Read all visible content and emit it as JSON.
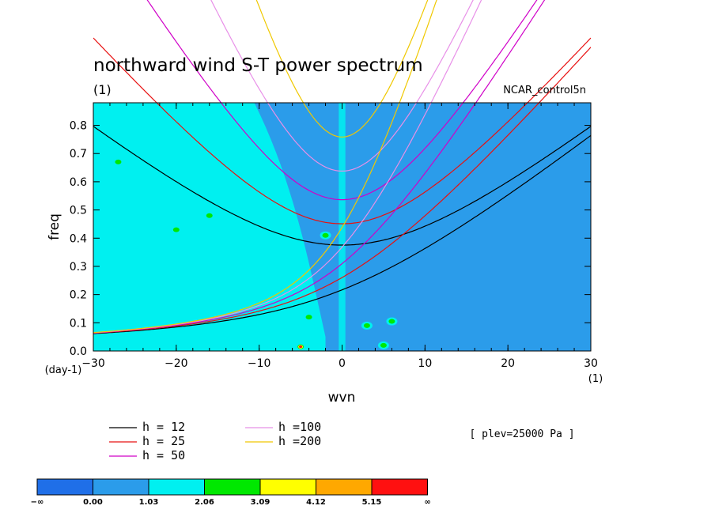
{
  "chart_data": {
    "type": "heatmap",
    "title": "northward wind S-T power spectrum",
    "subtitle": "(1)",
    "dataset": "NCAR_control5n",
    "xlabel": "wvn",
    "xunit": "(1)",
    "ylabel": "freq",
    "yunit": "(day-1)",
    "xlim": [
      -30,
      30
    ],
    "ylim": [
      0,
      0.88
    ],
    "xticks": [
      -30,
      -20,
      -10,
      0,
      10,
      20,
      30
    ],
    "xtick_labels": [
      "−30",
      "−20",
      "−10",
      "0",
      "10",
      "20",
      "30"
    ],
    "yticks": [
      0.0,
      0.1,
      0.2,
      0.3,
      0.4,
      0.5,
      0.6,
      0.7,
      0.8
    ],
    "ytick_labels": [
      "0.0",
      "0.1",
      "0.2",
      "0.3",
      "0.4",
      "0.5",
      "0.6",
      "0.7",
      "0.8"
    ],
    "annotation": "[ plev=25000 Pa ]",
    "colorbar": {
      "labels": [
        "−∞",
        "0.00",
        "1.03",
        "2.06",
        "3.09",
        "4.12",
        "5.15",
        "∞"
      ],
      "colors": [
        "#1f6fe8",
        "#2b9cea",
        "#00f0f0",
        "#00e800",
        "#ffff00",
        "#ffa800",
        "#ff1010"
      ]
    },
    "field": {
      "background_level": 1,
      "high_regions": [
        {
          "xrange": [
            -30,
            -2
          ],
          "level": 2
        }
      ],
      "spots": [
        {
          "x": -5,
          "y": 0.015,
          "level": 6
        },
        {
          "x": -4,
          "y": 0.12,
          "level": 3
        },
        {
          "x": 3,
          "y": 0.09,
          "level": 3
        },
        {
          "x": 6,
          "y": 0.105,
          "level": 3
        },
        {
          "x": 5,
          "y": 0.02,
          "level": 3
        },
        {
          "x": -20,
          "y": 0.43,
          "level": 3
        },
        {
          "x": -16,
          "y": 0.48,
          "level": 3
        },
        {
          "x": -27,
          "y": 0.67,
          "level": 3
        },
        {
          "x": -2,
          "y": 0.41,
          "level": 3
        }
      ]
    },
    "series": [
      {
        "name": "h = 12",
        "h": 12,
        "color": "#000000",
        "type": "curves"
      },
      {
        "name": "h = 25",
        "h": 25,
        "color": "#e81010",
        "type": "curves"
      },
      {
        "name": "h = 50",
        "h": 50,
        "color": "#d000c8",
        "type": "curves"
      },
      {
        "name": "h =100",
        "h": 100,
        "color": "#e890e8",
        "type": "curves"
      },
      {
        "name": "h =200",
        "h": 200,
        "color": "#f0c800",
        "type": "curves"
      }
    ]
  }
}
